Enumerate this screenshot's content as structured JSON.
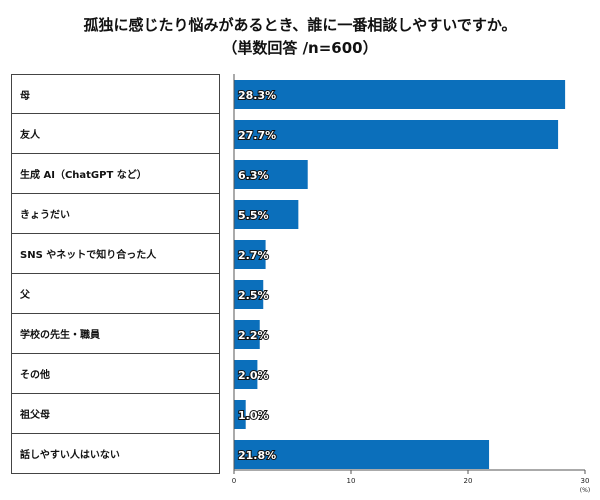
{
  "chart_data": {
    "type": "bar",
    "orientation": "horizontal",
    "title": "孤独に感じたり悩みがあるとき、誰に一番相談しやすいですか。",
    "subtitle": "（単数回答 /n=600）",
    "categories": [
      "母",
      "友人",
      "生成 AI（ChatGPT など）",
      "きょうだい",
      "SNS やネットで知り合った人",
      "父",
      "学校の先生・職員",
      "その他",
      "祖父母",
      "話しやすい人はいない"
    ],
    "values": [
      28.3,
      27.7,
      6.3,
      5.5,
      2.7,
      2.5,
      2.2,
      2.0,
      1.0,
      21.8
    ],
    "data_labels": [
      "28.3%",
      "27.7%",
      "6.3%",
      "5.5%",
      "2.7%",
      "2.5%",
      "2.2%",
      "2.0%",
      "1.0%",
      "21.8%"
    ],
    "xlim": [
      0,
      30
    ],
    "xticks": [
      "0",
      "10",
      "20",
      "30"
    ],
    "xunit": "(%)",
    "bar_color": "#0b6fbb",
    "grid": false
  }
}
